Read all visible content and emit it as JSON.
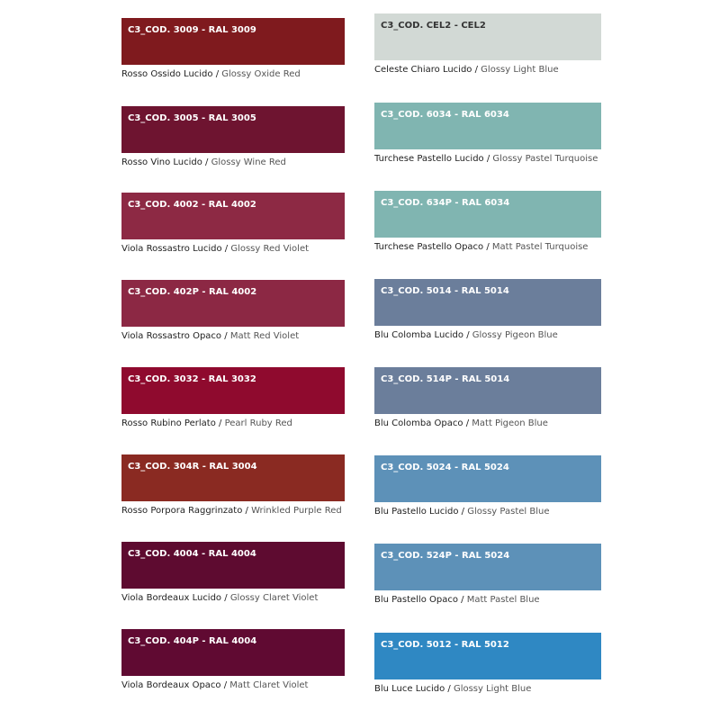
{
  "separator": "/",
  "columns": [
    {
      "swatches": [
        {
          "code": "C3_COD. 3009 - RAL 3009",
          "it": "Rosso Ossido Lucido",
          "en": "Glossy Oxide Red",
          "color": "#7f1a1e"
        },
        {
          "code": "C3_COD. 3005 - RAL 3005",
          "it": "Rosso Vino Lucido",
          "en": "Glossy Wine Red",
          "color": "#6e1430"
        },
        {
          "code": "C3_COD. 4002 - RAL 4002",
          "it": "Viola Rossastro Lucido",
          "en": "Glossy Red Violet",
          "color": "#8d2944"
        },
        {
          "code": "C3_COD. 402P - RAL 4002",
          "it": "Viola Rossastro Opaco",
          "en": "Matt Red Violet",
          "color": "#8c2844"
        },
        {
          "code": "C3_COD. 3032 - RAL 3032",
          "it": "Rosso Rubino Perlato",
          "en": "Pearl Ruby Red",
          "color": "#8f0a2e"
        },
        {
          "code": "C3_COD. 304R - RAL 3004",
          "it": "Rosso Porpora Raggrinzato",
          "en": "Wrinkled Purple Red",
          "color": "#8a2a22"
        },
        {
          "code": "C3_COD. 4004 - RAL 4004",
          "it": "Viola Bordeaux Lucido",
          "en": "Glossy Claret Violet",
          "color": "#5e0b30"
        },
        {
          "code": "C3_COD. 404P - RAL 4004",
          "it": "Viola Bordeaux Opaco",
          "en": "Matt Claret Violet",
          "color": "#600a32"
        }
      ]
    },
    {
      "swatches": [
        {
          "code": "C3_COD. CEL2 - CEL2",
          "it": "Celeste Chiaro Lucido",
          "en": "Glossy Light Blue",
          "color": "#d2d9d5"
        },
        {
          "code": "C3_COD. 6034 - RAL 6034",
          "it": "Turchese Pastello Lucido",
          "en": "Glossy Pastel Turquoise",
          "color": "#80b5b1"
        },
        {
          "code": "C3_COD. 634P - RAL 6034",
          "it": "Turchese Pastello Opaco",
          "en": "Matt Pastel Turquoise",
          "color": "#80b5b1"
        },
        {
          "code": "C3_COD. 5014 - RAL 5014",
          "it": "Blu Colomba Lucido",
          "en": "Glossy Pigeon Blue",
          "color": "#6b7e9b"
        },
        {
          "code": "C3_COD. 514P - RAL 5014",
          "it": "Blu Colomba Opaco",
          "en": "Matt Pigeon Blue",
          "color": "#6b7e9b"
        },
        {
          "code": "C3_COD. 5024 - RAL 5024",
          "it": "Blu Pastello Lucido",
          "en": "Glossy Pastel Blue",
          "color": "#5d91b8"
        },
        {
          "code": "C3_COD. 524P - RAL 5024",
          "it": "Blu Pastello Opaco",
          "en": "Matt Pastel Blue",
          "color": "#5d91b8"
        },
        {
          "code": "C3_COD. 5012 - RAL 5012",
          "it": "Blu Luce Lucido",
          "en": "Glossy Light Blue",
          "color": "#2f88c3"
        }
      ]
    }
  ]
}
